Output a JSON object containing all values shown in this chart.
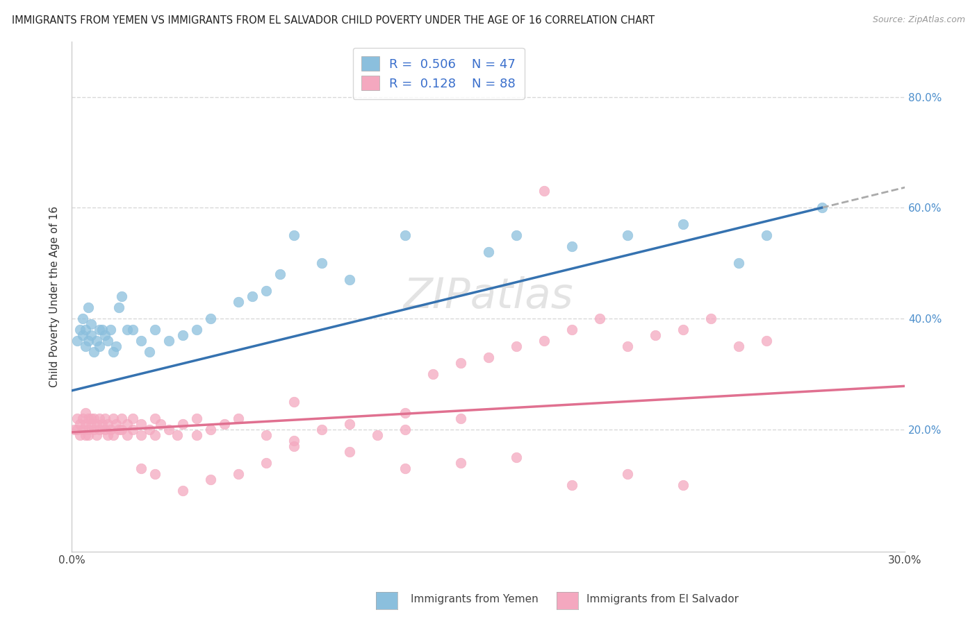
{
  "title": "IMMIGRANTS FROM YEMEN VS IMMIGRANTS FROM EL SALVADOR CHILD POVERTY UNDER THE AGE OF 16 CORRELATION CHART",
  "source": "Source: ZipAtlas.com",
  "ylabel": "Child Poverty Under the Age of 16",
  "xlim": [
    0.0,
    0.3
  ],
  "ylim": [
    -0.02,
    0.9
  ],
  "legend_label1": "Immigrants from Yemen",
  "legend_label2": "Immigrants from El Salvador",
  "R1": "0.506",
  "N1": "47",
  "R2": "0.128",
  "N2": "88",
  "color_yemen": "#8bbfdd",
  "color_salvador": "#f4a8bf",
  "color_trend_yemen": "#3572b0",
  "color_trend_salvador": "#e07090",
  "background_color": "#ffffff",
  "grid_color": "#d0d0d0",
  "yemen_trend_x0": 0.0,
  "yemen_trend_y0": 0.27,
  "yemen_trend_x1": 0.27,
  "yemen_trend_y1": 0.6,
  "salvador_trend_x0": 0.0,
  "salvador_trend_y0": 0.195,
  "salvador_trend_x1": 0.27,
  "salvador_trend_y1": 0.27,
  "yemen_x": [
    0.002,
    0.003,
    0.004,
    0.004,
    0.005,
    0.005,
    0.006,
    0.006,
    0.007,
    0.007,
    0.008,
    0.009,
    0.01,
    0.01,
    0.011,
    0.012,
    0.013,
    0.014,
    0.015,
    0.016,
    0.017,
    0.018,
    0.02,
    0.022,
    0.025,
    0.028,
    0.03,
    0.035,
    0.04,
    0.045,
    0.05,
    0.06,
    0.065,
    0.07,
    0.075,
    0.08,
    0.09,
    0.1,
    0.12,
    0.15,
    0.16,
    0.18,
    0.2,
    0.22,
    0.24,
    0.25,
    0.27
  ],
  "yemen_y": [
    0.36,
    0.38,
    0.37,
    0.4,
    0.35,
    0.38,
    0.36,
    0.42,
    0.39,
    0.37,
    0.34,
    0.36,
    0.38,
    0.35,
    0.38,
    0.37,
    0.36,
    0.38,
    0.34,
    0.35,
    0.42,
    0.44,
    0.38,
    0.38,
    0.36,
    0.34,
    0.38,
    0.36,
    0.37,
    0.38,
    0.4,
    0.43,
    0.44,
    0.45,
    0.48,
    0.55,
    0.5,
    0.47,
    0.55,
    0.52,
    0.55,
    0.53,
    0.55,
    0.57,
    0.5,
    0.55,
    0.6
  ],
  "salvador_x": [
    0.001,
    0.002,
    0.002,
    0.003,
    0.003,
    0.004,
    0.004,
    0.005,
    0.005,
    0.005,
    0.006,
    0.006,
    0.006,
    0.007,
    0.007,
    0.008,
    0.008,
    0.009,
    0.009,
    0.01,
    0.01,
    0.011,
    0.012,
    0.012,
    0.013,
    0.013,
    0.014,
    0.015,
    0.015,
    0.016,
    0.017,
    0.018,
    0.018,
    0.02,
    0.02,
    0.022,
    0.022,
    0.025,
    0.025,
    0.028,
    0.03,
    0.03,
    0.032,
    0.035,
    0.038,
    0.04,
    0.045,
    0.045,
    0.05,
    0.055,
    0.06,
    0.07,
    0.08,
    0.09,
    0.1,
    0.11,
    0.12,
    0.13,
    0.14,
    0.15,
    0.16,
    0.17,
    0.18,
    0.19,
    0.2,
    0.21,
    0.22,
    0.23,
    0.24,
    0.25,
    0.18,
    0.2,
    0.22,
    0.16,
    0.14,
    0.12,
    0.1,
    0.08,
    0.07,
    0.06,
    0.05,
    0.04,
    0.03,
    0.025,
    0.08,
    0.12,
    0.14,
    0.17
  ],
  "salvador_y": [
    0.2,
    0.22,
    0.2,
    0.19,
    0.21,
    0.2,
    0.22,
    0.19,
    0.21,
    0.23,
    0.2,
    0.22,
    0.19,
    0.21,
    0.22,
    0.2,
    0.22,
    0.19,
    0.21,
    0.2,
    0.22,
    0.21,
    0.2,
    0.22,
    0.21,
    0.19,
    0.2,
    0.22,
    0.19,
    0.21,
    0.2,
    0.22,
    0.2,
    0.19,
    0.21,
    0.2,
    0.22,
    0.19,
    0.21,
    0.2,
    0.22,
    0.19,
    0.21,
    0.2,
    0.19,
    0.21,
    0.22,
    0.19,
    0.2,
    0.21,
    0.22,
    0.19,
    0.18,
    0.2,
    0.21,
    0.19,
    0.2,
    0.3,
    0.32,
    0.33,
    0.35,
    0.36,
    0.38,
    0.4,
    0.35,
    0.37,
    0.38,
    0.4,
    0.35,
    0.36,
    0.1,
    0.12,
    0.1,
    0.15,
    0.14,
    0.13,
    0.16,
    0.17,
    0.14,
    0.12,
    0.11,
    0.09,
    0.12,
    0.13,
    0.25,
    0.23,
    0.22,
    0.63
  ]
}
